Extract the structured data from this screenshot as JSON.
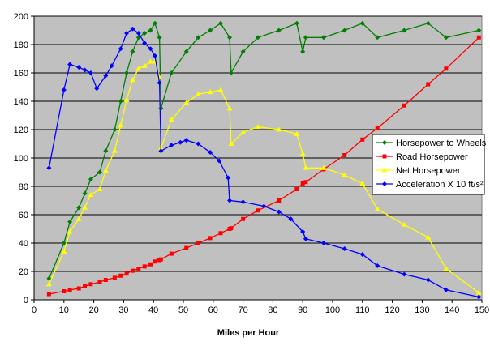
{
  "chart_data": {
    "type": "line",
    "title": "",
    "xlabel": "Miles per Hour",
    "ylabel": "",
    "xlim": [
      0,
      150
    ],
    "ylim": [
      0,
      200
    ],
    "xticks": [
      0,
      10,
      20,
      30,
      40,
      50,
      60,
      70,
      80,
      90,
      100,
      110,
      120,
      130,
      140,
      150
    ],
    "yticks": [
      0,
      20,
      40,
      60,
      80,
      100,
      120,
      140,
      160,
      180,
      200
    ],
    "grid": "horizontal",
    "plot_background": "#c0c0c0",
    "legend_position": "right",
    "series": [
      {
        "name": "Horsepower to Wheels",
        "color": "#007f00",
        "marker": "diamond",
        "points": [
          [
            5,
            15
          ],
          [
            10,
            40
          ],
          [
            12,
            55
          ],
          [
            15,
            65
          ],
          [
            17,
            75
          ],
          [
            19,
            85
          ],
          [
            22,
            90
          ],
          [
            24,
            105
          ],
          [
            27,
            120
          ],
          [
            29,
            140
          ],
          [
            31,
            160
          ],
          [
            33,
            175
          ],
          [
            35,
            185
          ],
          [
            37,
            188
          ],
          [
            39,
            190
          ],
          [
            40.5,
            195
          ],
          [
            42,
            185
          ],
          [
            42.5,
            135
          ],
          [
            46,
            160
          ],
          [
            51,
            175
          ],
          [
            55,
            185
          ],
          [
            59,
            190
          ],
          [
            62.5,
            195
          ],
          [
            65.5,
            185
          ],
          [
            66,
            160
          ],
          [
            70,
            175
          ],
          [
            75,
            185
          ],
          [
            82,
            190
          ],
          [
            88,
            195
          ],
          [
            90,
            175
          ],
          [
            91,
            185
          ],
          [
            97,
            185
          ],
          [
            104,
            190
          ],
          [
            110,
            195
          ],
          [
            115,
            185
          ],
          [
            124,
            190
          ],
          [
            132,
            195
          ],
          [
            138,
            185
          ],
          [
            149,
            190
          ]
        ]
      },
      {
        "name": "Road Horsepower",
        "color": "#ff0000",
        "marker": "square",
        "points": [
          [
            5,
            4
          ],
          [
            10,
            6
          ],
          [
            12,
            7
          ],
          [
            15,
            8
          ],
          [
            17,
            9.5
          ],
          [
            19,
            11
          ],
          [
            22,
            12.5
          ],
          [
            24,
            14
          ],
          [
            27,
            15.5
          ],
          [
            29,
            17
          ],
          [
            31,
            18.5
          ],
          [
            33,
            20.5
          ],
          [
            35,
            22
          ],
          [
            37,
            23.5
          ],
          [
            39,
            25
          ],
          [
            40.5,
            27
          ],
          [
            42,
            28
          ],
          [
            42.5,
            28.5
          ],
          [
            46,
            32.5
          ],
          [
            51,
            36.5
          ],
          [
            55,
            40
          ],
          [
            59,
            43.5
          ],
          [
            62.5,
            47
          ],
          [
            65.5,
            50
          ],
          [
            66,
            50.5
          ],
          [
            70,
            57
          ],
          [
            75,
            63
          ],
          [
            82,
            70
          ],
          [
            88,
            78
          ],
          [
            90,
            82
          ],
          [
            91,
            83
          ],
          [
            97,
            92
          ],
          [
            104,
            102
          ],
          [
            110,
            113
          ],
          [
            115,
            121
          ],
          [
            124,
            137
          ],
          [
            132,
            152
          ],
          [
            138,
            163
          ],
          [
            149,
            185
          ]
        ]
      },
      {
        "name": "Net Horsepower",
        "color": "#ffff00",
        "marker": "triangle",
        "points": [
          [
            5,
            11
          ],
          [
            10,
            34
          ],
          [
            12,
            48
          ],
          [
            15,
            57
          ],
          [
            17,
            65
          ],
          [
            19,
            74
          ],
          [
            22,
            78
          ],
          [
            24,
            91
          ],
          [
            27,
            105
          ],
          [
            29,
            123
          ],
          [
            31,
            141
          ],
          [
            33,
            155
          ],
          [
            35,
            163
          ],
          [
            37,
            165
          ],
          [
            39,
            168
          ],
          [
            40.5,
            168
          ],
          [
            42,
            157
          ],
          [
            42.5,
            107
          ],
          [
            46,
            127
          ],
          [
            51,
            139
          ],
          [
            55,
            145
          ],
          [
            59,
            146.5
          ],
          [
            62.5,
            148
          ],
          [
            65.5,
            135
          ],
          [
            66,
            110
          ],
          [
            70,
            118
          ],
          [
            75,
            122
          ],
          [
            82,
            120
          ],
          [
            88,
            117
          ],
          [
            90,
            103
          ],
          [
            91,
            93
          ],
          [
            97,
            93
          ],
          [
            104,
            88
          ],
          [
            110,
            82
          ],
          [
            115,
            64
          ],
          [
            124,
            53
          ],
          [
            132,
            44
          ],
          [
            138,
            22
          ],
          [
            149,
            5
          ]
        ]
      },
      {
        "name": "Acceleration X 10 ft/s²",
        "color": "#0000ff",
        "marker": "diamond",
        "points": [
          [
            5,
            93
          ],
          [
            10,
            148
          ],
          [
            12,
            166
          ],
          [
            15,
            164
          ],
          [
            17,
            162
          ],
          [
            19,
            160
          ],
          [
            21,
            149
          ],
          [
            24,
            158
          ],
          [
            26,
            165
          ],
          [
            29,
            177
          ],
          [
            31,
            188
          ],
          [
            33,
            191
          ],
          [
            35,
            188
          ],
          [
            37,
            181
          ],
          [
            39,
            177
          ],
          [
            40.5,
            172
          ],
          [
            42,
            153
          ],
          [
            42.5,
            105
          ],
          [
            46,
            109
          ],
          [
            49,
            111
          ],
          [
            51,
            112.5
          ],
          [
            55,
            110
          ],
          [
            59,
            104
          ],
          [
            62,
            98
          ],
          [
            65,
            86
          ],
          [
            65.5,
            70
          ],
          [
            70,
            69
          ],
          [
            77,
            66
          ],
          [
            82,
            62
          ],
          [
            86,
            57
          ],
          [
            90,
            48
          ],
          [
            91,
            43
          ],
          [
            97,
            40
          ],
          [
            104,
            36
          ],
          [
            110,
            32
          ],
          [
            115,
            24
          ],
          [
            124,
            18
          ],
          [
            132,
            14
          ],
          [
            138,
            7
          ],
          [
            149,
            2
          ]
        ]
      }
    ]
  }
}
